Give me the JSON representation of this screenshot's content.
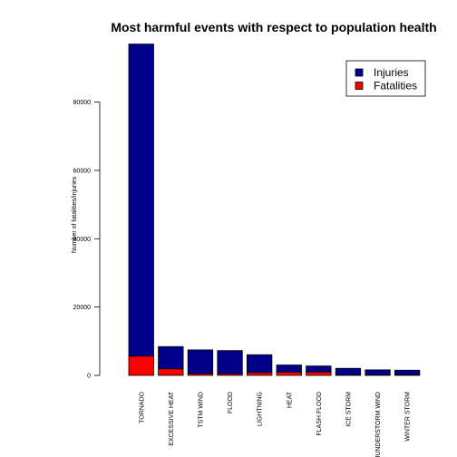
{
  "chart_data": {
    "type": "bar",
    "stacked": true,
    "title": "Most harmful events with respect to population health",
    "xlabel": "",
    "ylabel": "Number of fatalities/injuries",
    "ylim": [
      0,
      97000
    ],
    "yticks": [
      0,
      20000,
      40000,
      60000,
      80000
    ],
    "categories": [
      "TORNADO",
      "EXCESSIVE HEAT",
      "TSTM WIND",
      "FLOOD",
      "LIGHTNING",
      "HEAT",
      "FLASH FLOOD",
      "ICE STORM",
      "THUNDERSTORM WIND",
      "WINTER STORM"
    ],
    "series": [
      {
        "name": "Fatalities",
        "color": "#ff0000",
        "values": [
          5633,
          1903,
          504,
          470,
          816,
          937,
          978,
          89,
          133,
          206
        ]
      },
      {
        "name": "Injuries",
        "color": "#00008b",
        "values": [
          91346,
          6525,
          6957,
          6789,
          5230,
          2100,
          1777,
          1975,
          1488,
          1321
        ]
      }
    ],
    "legend": {
      "position": "top-right",
      "entries": [
        "Injuries",
        "Fatalities"
      ]
    },
    "grid": false
  }
}
